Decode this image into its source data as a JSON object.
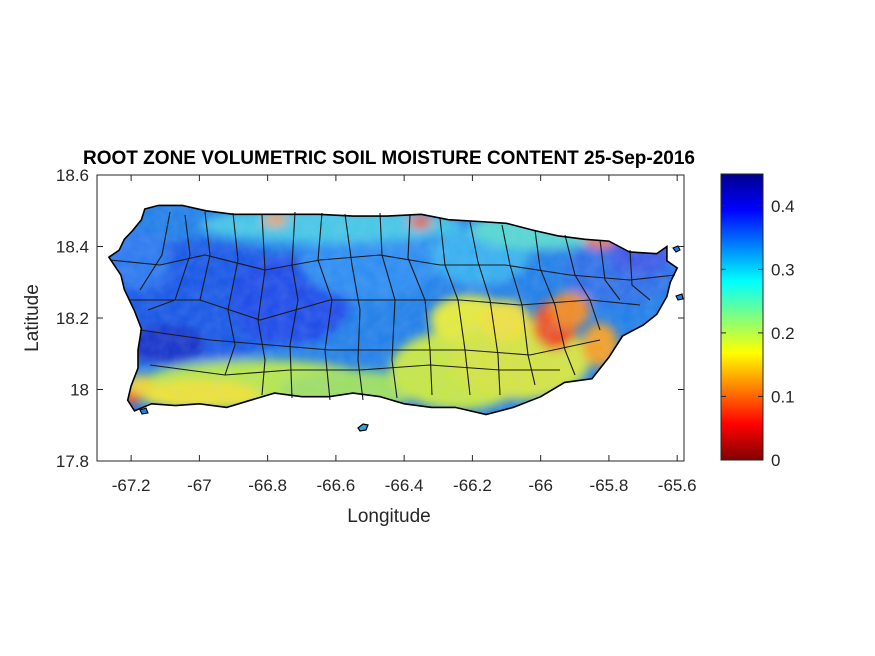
{
  "title": "ROOT ZONE VOLUMETRIC SOIL MOISTURE CONTENT 25-Sep-2016",
  "chart_data": {
    "type": "heatmap",
    "subject": "map",
    "xlabel": "Longitude",
    "ylabel": "Latitude",
    "xlim": [
      -67.3,
      -65.58
    ],
    "ylim": [
      17.8,
      18.6
    ],
    "xticks": [
      -67.2,
      -67,
      -66.8,
      -66.6,
      -66.4,
      -66.2,
      -66,
      -65.8,
      -65.6
    ],
    "xtick_labels": [
      "-67.2",
      "-67",
      "-66.8",
      "-66.6",
      "-66.4",
      "-66.2",
      "-66",
      "-65.8",
      "-65.6"
    ],
    "yticks": [
      17.8,
      18,
      18.2,
      18.4,
      18.6
    ],
    "ytick_labels": [
      "17.8",
      "18",
      "18.2",
      "18.4",
      "18.6"
    ],
    "colorbar": {
      "lim": [
        0,
        0.45
      ],
      "ticks": [
        0,
        0.1,
        0.2,
        0.3,
        0.4
      ],
      "tick_labels": [
        "0",
        "0.1",
        "0.2",
        "0.3",
        "0.4"
      ],
      "colormap": "jet"
    },
    "grid": false
  }
}
